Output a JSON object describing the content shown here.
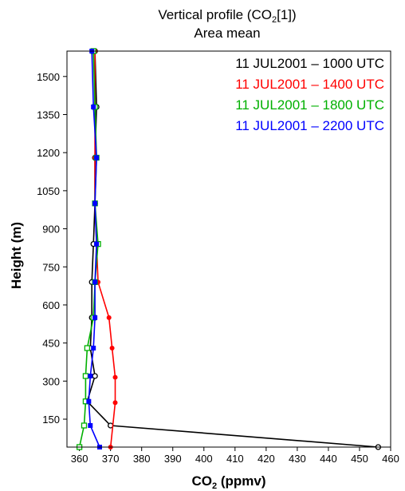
{
  "chart_data": {
    "type": "line",
    "title": "Vertical profile (CO",
    "title_sub": "2",
    "title_suffix": "[1])",
    "subtitle": "Area mean",
    "xlabel": "CO",
    "xlabel_sub": "2",
    "xlabel_suffix": " (ppmv)",
    "ylabel": "Height (m)",
    "xlim": [
      356,
      460
    ],
    "ylim": [
      40,
      1600
    ],
    "x_ticks": [
      360,
      370,
      380,
      390,
      400,
      410,
      420,
      430,
      440,
      450,
      460
    ],
    "y_ticks": [
      150,
      300,
      450,
      600,
      750,
      900,
      1050,
      1200,
      1350,
      1500
    ],
    "legend_position": "top-right",
    "series": [
      {
        "name": "11 JUL2001 – 1000 UTC",
        "color": "#000000",
        "marker": "open-circle",
        "points": [
          [
            456,
            40
          ],
          [
            370,
            125
          ],
          [
            362.5,
            220
          ],
          [
            365,
            320
          ],
          [
            363.5,
            430
          ],
          [
            364,
            550
          ],
          [
            364,
            690
          ],
          [
            364.5,
            840
          ],
          [
            365,
            1000
          ],
          [
            365,
            1180
          ],
          [
            365.5,
            1380
          ],
          [
            365,
            1600
          ]
        ]
      },
      {
        "name": "11 JUL2001 – 1400 UTC",
        "color": "#ff0000",
        "marker": "filled-circle",
        "points": [
          [
            370,
            40
          ],
          [
            371.5,
            215
          ],
          [
            371.5,
            315
          ],
          [
            370.5,
            430
          ],
          [
            369.5,
            550
          ],
          [
            366,
            690
          ],
          [
            365.5,
            840
          ],
          [
            365,
            1000
          ],
          [
            365,
            1180
          ],
          [
            365,
            1380
          ],
          [
            365,
            1600
          ]
        ]
      },
      {
        "name": "11 JUL2001 – 1800 UTC",
        "color": "#00b000",
        "marker": "open-square",
        "points": [
          [
            360,
            40
          ],
          [
            361.5,
            125
          ],
          [
            362,
            220
          ],
          [
            362,
            320
          ],
          [
            362.5,
            430
          ],
          [
            364.5,
            550
          ],
          [
            365,
            690
          ],
          [
            366,
            840
          ],
          [
            365,
            1000
          ],
          [
            365.5,
            1180
          ],
          [
            365,
            1380
          ],
          [
            364.5,
            1600
          ]
        ]
      },
      {
        "name": "11 JUL2001 – 2200 UTC",
        "color": "#0000ff",
        "marker": "filled-square",
        "points": [
          [
            366.5,
            40
          ],
          [
            363.5,
            125
          ],
          [
            363,
            220
          ],
          [
            363.5,
            320
          ],
          [
            364.5,
            430
          ],
          [
            365,
            550
          ],
          [
            365,
            690
          ],
          [
            365.5,
            840
          ],
          [
            365,
            1000
          ],
          [
            365.5,
            1180
          ],
          [
            364.5,
            1380
          ],
          [
            364,
            1600
          ]
        ]
      }
    ]
  }
}
